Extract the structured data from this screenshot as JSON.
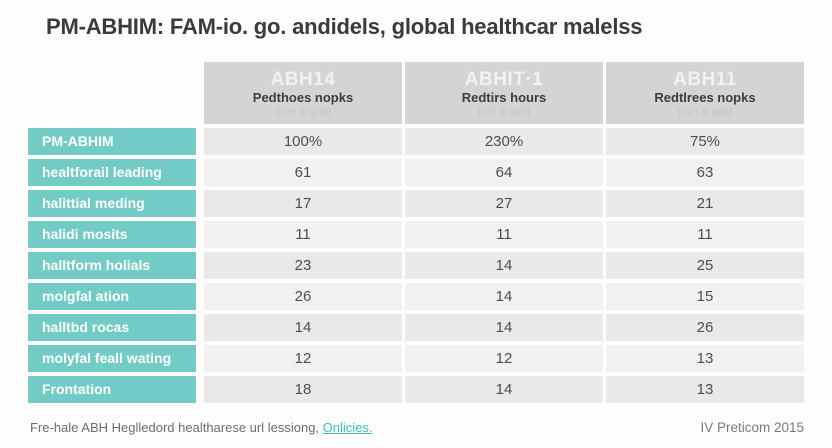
{
  "title": "PM-ABHIM: FAM-io. go. andidels, global healthcar malelss",
  "colors": {
    "teal": "#73cbc5",
    "header_bg": "#d5d4d2",
    "row_dark": "#eae9e7",
    "row_light": "#f2f1ef",
    "header_code_text": "#f3f2f0",
    "header_sub_text": "#3d3d3d",
    "header_note_text": "#bdc6c2",
    "data_text": "#4d4d4d",
    "title_text": "#3b3b3b",
    "link": "#3fbdb8",
    "footer_text": "#6d6d6d"
  },
  "table": {
    "columns": [
      {
        "code": "ABH14",
        "subtitle": "Pedthoes nopks",
        "note": "(mm al gob)"
      },
      {
        "code": "ABHIT·1",
        "subtitle": "Redtirs hours",
        "note": "(mit al gob)"
      },
      {
        "code": "ABH11",
        "subtitle": "Redtlrees nopks",
        "note": "(min al gpb)"
      }
    ],
    "rows": [
      {
        "label": "PM-ABHIM",
        "values": [
          "100%",
          "230%",
          "75%"
        ]
      },
      {
        "label": "healtforail leading",
        "values": [
          "61",
          "64",
          "63"
        ]
      },
      {
        "label": "halittial meding",
        "values": [
          "17",
          "27",
          "21"
        ]
      },
      {
        "label": "halidi mosits",
        "values": [
          "11",
          "11",
          "11"
        ]
      },
      {
        "label": "halltform holials",
        "values": [
          "23",
          "14",
          "25"
        ]
      },
      {
        "label": "molgfal ation",
        "values": [
          "26",
          "14",
          "15"
        ]
      },
      {
        "label": "halltbd rocas",
        "values": [
          "14",
          "14",
          "26"
        ]
      },
      {
        "label": "molyfal feall wating",
        "values": [
          "12",
          "12",
          "13"
        ]
      },
      {
        "label": "Frontation",
        "values": [
          "18",
          "14",
          "13"
        ]
      }
    ]
  },
  "footer": {
    "source_text": "Fre-hale ABH Heglledord healtharese url lessiong,",
    "link_label": "Onlicies.",
    "right_text": "IV Preticom 2015"
  },
  "chart_data": {
    "type": "table",
    "title": "PM-ABHIM: FAM-io. go. andidels, global healthcar malelss",
    "columns": [
      "",
      "ABH14 / Pedthoes nopks / (mm al gob)",
      "ABHIT·1 / Redtirs hours / (mit al gob)",
      "ABH11 / Redtlrees nopks / (min al gpb)"
    ],
    "rows": [
      [
        "PM-ABHIM",
        "100%",
        "230%",
        "75%"
      ],
      [
        "healtforail leading",
        61,
        64,
        63
      ],
      [
        "halittial meding",
        17,
        27,
        21
      ],
      [
        "halidi mosits",
        11,
        11,
        11
      ],
      [
        "halltform holials",
        23,
        14,
        25
      ],
      [
        "molgfal ation",
        26,
        14,
        15
      ],
      [
        "halltbd rocas",
        14,
        14,
        26
      ],
      [
        "molyfal feall wating",
        12,
        12,
        13
      ],
      [
        "Frontation",
        18,
        14,
        13
      ]
    ],
    "legend_position": "none",
    "grid": false
  }
}
